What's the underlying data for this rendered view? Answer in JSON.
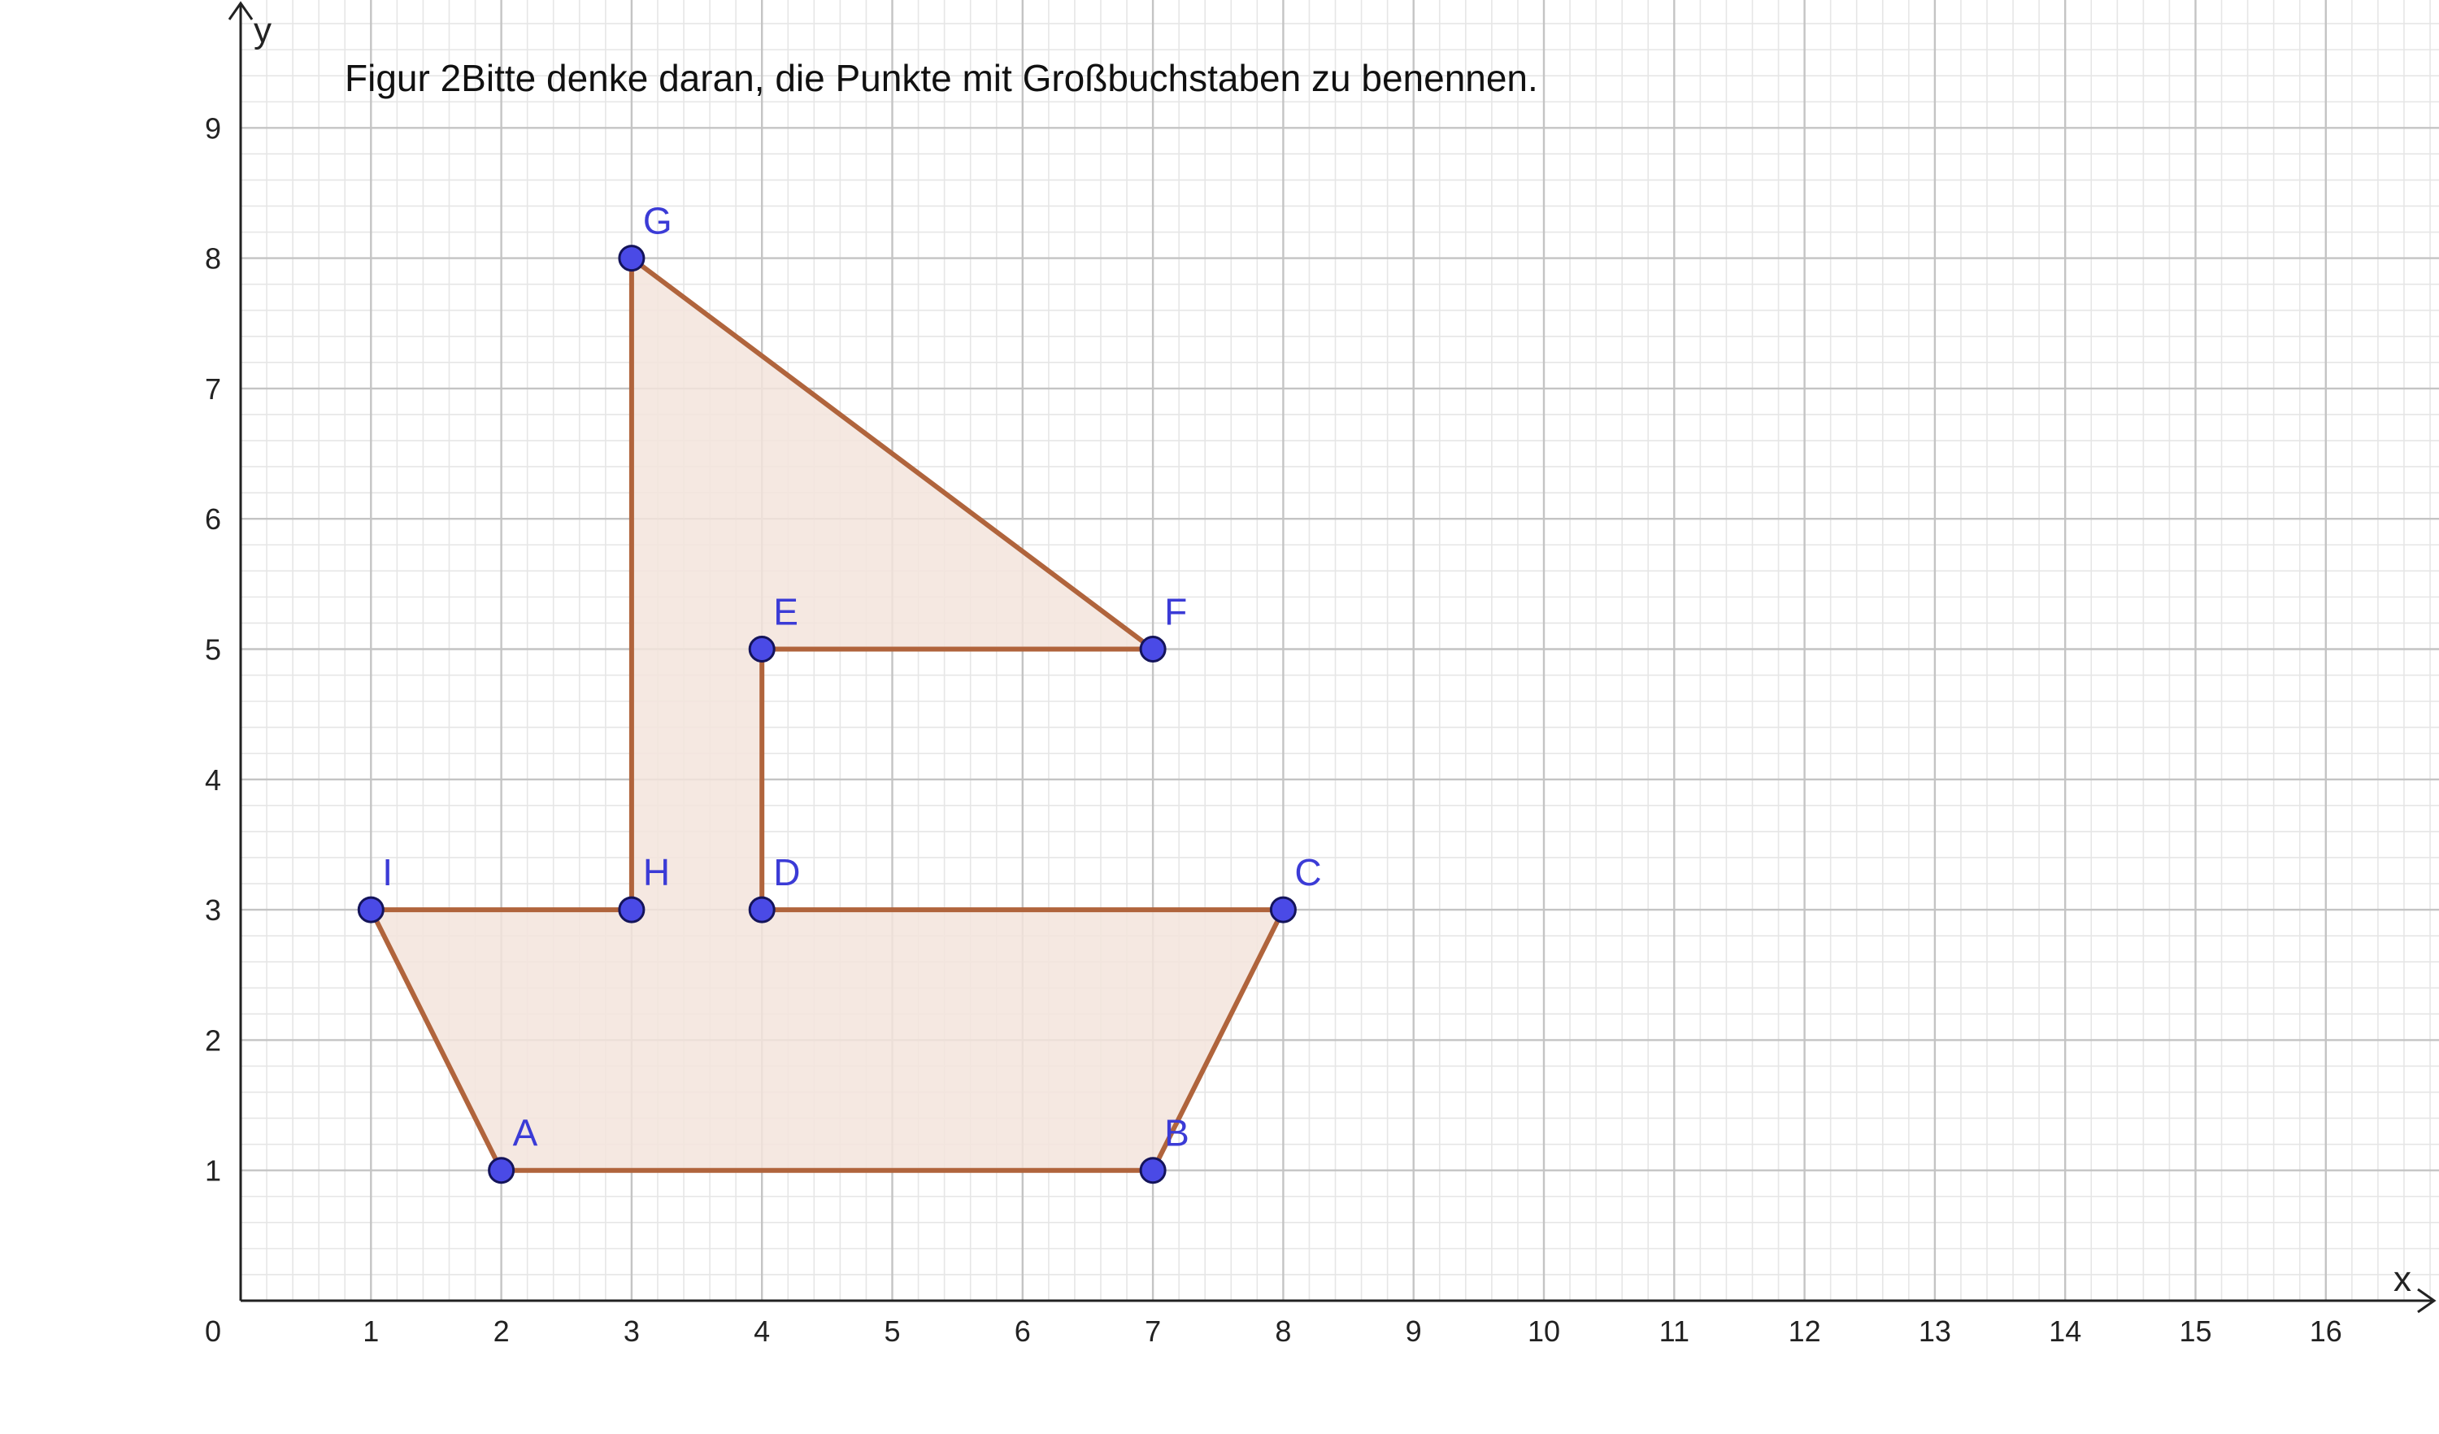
{
  "title": "Figur 2Bitte denke daran, die Punkte mit Großbuchstaben zu benennen.",
  "axes": {
    "x_label": "x",
    "y_label": "y",
    "origin_label": "0",
    "x_ticks": [
      "1",
      "2",
      "3",
      "4",
      "5",
      "6",
      "7",
      "8",
      "9",
      "10",
      "11",
      "12",
      "13",
      "14",
      "15",
      "16"
    ],
    "y_ticks": [
      "1",
      "2",
      "3",
      "4",
      "5",
      "6",
      "7",
      "8",
      "9"
    ],
    "x_range": [
      0,
      16.9
    ],
    "y_range": [
      0,
      9.95
    ],
    "minor_grid_step": 0.2,
    "major_grid_step": 1
  },
  "points": [
    {
      "name": "A",
      "x": 2,
      "y": 1
    },
    {
      "name": "B",
      "x": 7,
      "y": 1
    },
    {
      "name": "C",
      "x": 8,
      "y": 3
    },
    {
      "name": "D",
      "x": 4,
      "y": 3
    },
    {
      "name": "E",
      "x": 4,
      "y": 5
    },
    {
      "name": "F",
      "x": 7,
      "y": 5
    },
    {
      "name": "G",
      "x": 3,
      "y": 8
    },
    {
      "name": "H",
      "x": 3,
      "y": 3
    },
    {
      "name": "I",
      "x": 1,
      "y": 3
    }
  ],
  "polygon_order": [
    "A",
    "B",
    "C",
    "D",
    "E",
    "F",
    "G",
    "H",
    "I"
  ],
  "colors": {
    "polygon_stroke": "#b0643c",
    "polygon_fill": "#f3e4dc",
    "point_fill": "#4a4ae6",
    "point_stroke": "#14145a",
    "minor_grid": "#e6e6e6",
    "major_grid": "#c4c4c4",
    "axis": "#222222"
  }
}
